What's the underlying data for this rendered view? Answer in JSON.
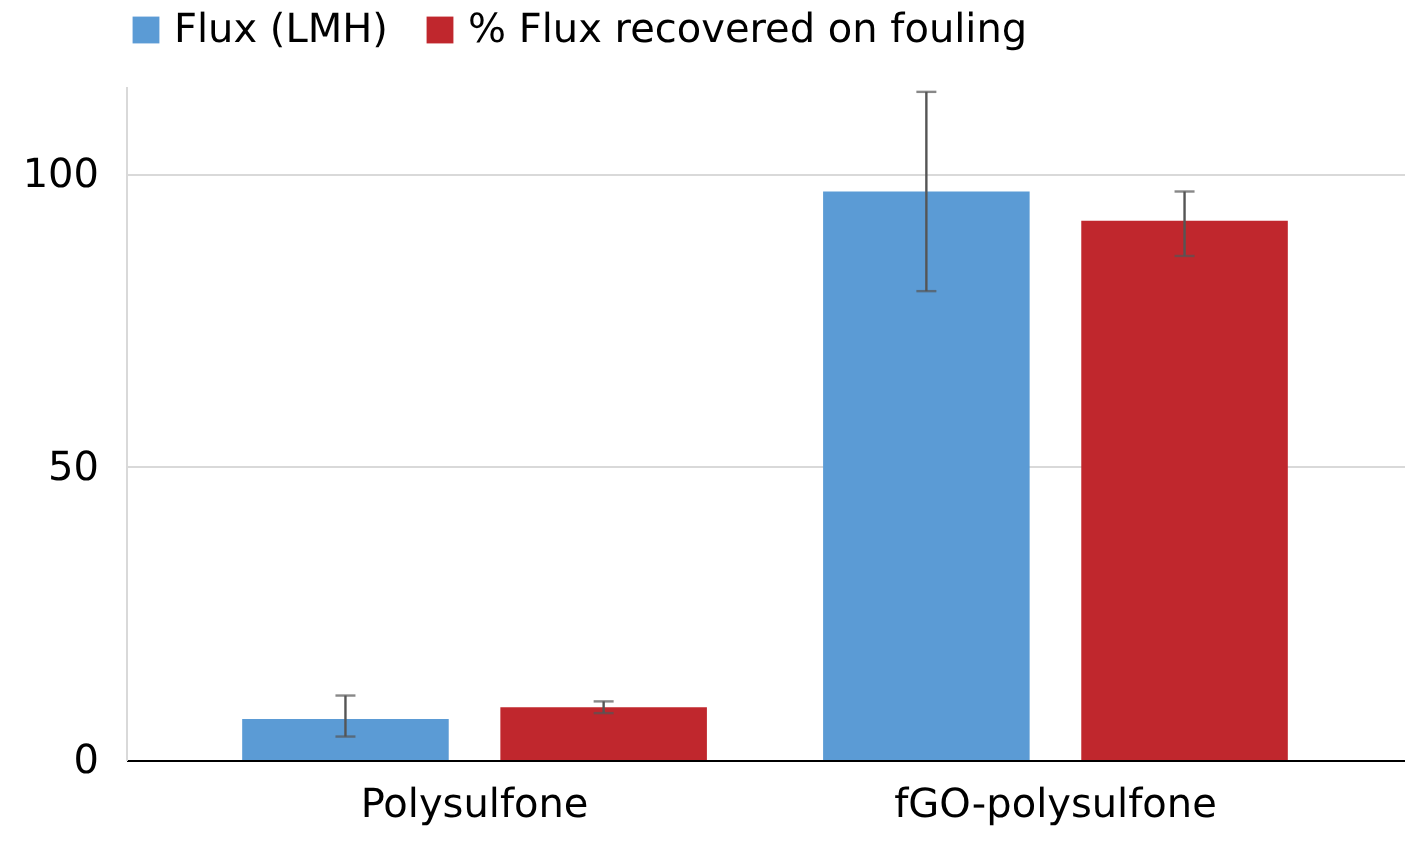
{
  "chart_data": {
    "type": "bar",
    "categories": [
      "Polysulfone",
      "fGO-polysulfone"
    ],
    "series": [
      {
        "name": "Flux (LMH)",
        "color": "#5b9bd5",
        "values": [
          7,
          97
        ],
        "errors": [
          [
            4,
            11
          ],
          [
            80,
            114
          ]
        ]
      },
      {
        "name": "% Flux recovered on fouling",
        "color": "#c0272d",
        "values": [
          9,
          92
        ],
        "errors": [
          [
            8,
            10
          ],
          [
            86,
            97
          ]
        ]
      }
    ],
    "ylim": [
      0,
      115
    ],
    "yticks": [
      0,
      50,
      100
    ],
    "grid": "y",
    "legend": "top"
  }
}
